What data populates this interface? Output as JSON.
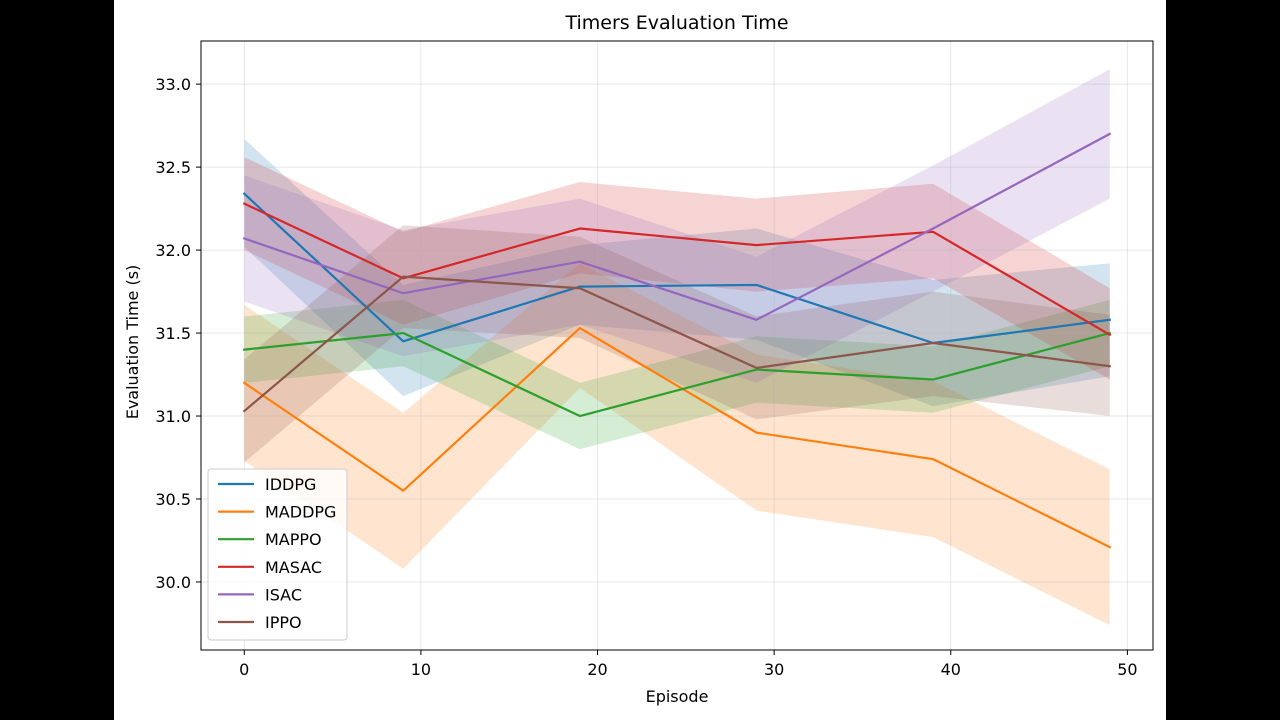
{
  "chart_data": {
    "type": "line",
    "title": "Timers Evaluation Time",
    "xlabel": "Episode",
    "ylabel": "Evaluation Time (s)",
    "xlim": [
      -2.45,
      51.45
    ],
    "ylim": [
      29.59,
      33.26
    ],
    "xticks": [
      0,
      10,
      20,
      30,
      40,
      50
    ],
    "yticks": [
      30.0,
      30.5,
      31.0,
      31.5,
      32.0,
      32.5,
      33.0
    ],
    "ytick_labels": [
      "30.0",
      "30.5",
      "31.0",
      "31.5",
      "32.0",
      "32.5",
      "33.0"
    ],
    "grid": true,
    "legend_position": "lower-left",
    "x": [
      0,
      9,
      19,
      29,
      39,
      49
    ],
    "series": [
      {
        "name": "IDDPG",
        "color": "#1f77b4",
        "values": [
          32.34,
          31.45,
          31.78,
          31.79,
          31.44,
          31.58
        ],
        "lower": [
          32.02,
          31.12,
          31.55,
          31.46,
          31.06,
          31.24
        ],
        "upper": [
          32.67,
          31.79,
          32.03,
          32.13,
          31.82,
          31.92
        ]
      },
      {
        "name": "MADDPG",
        "color": "#ff7f0e",
        "values": [
          31.2,
          30.55,
          31.53,
          30.9,
          30.74,
          30.21
        ],
        "lower": [
          30.73,
          30.08,
          31.17,
          30.43,
          30.27,
          29.74
        ],
        "upper": [
          31.67,
          31.02,
          31.92,
          31.37,
          31.21,
          30.68
        ]
      },
      {
        "name": "MAPPO",
        "color": "#2ca02c",
        "values": [
          31.4,
          31.5,
          31.0,
          31.28,
          31.22,
          31.5
        ],
        "lower": [
          31.2,
          31.3,
          30.8,
          31.08,
          31.02,
          31.3
        ],
        "upper": [
          31.6,
          31.7,
          31.2,
          31.48,
          31.42,
          31.7
        ]
      },
      {
        "name": "MASAC",
        "color": "#d62728",
        "values": [
          32.28,
          31.83,
          32.13,
          32.03,
          32.11,
          31.49
        ],
        "lower": [
          32.0,
          31.55,
          31.86,
          31.75,
          31.83,
          31.22
        ],
        "upper": [
          32.56,
          32.11,
          32.41,
          32.31,
          32.4,
          31.77
        ]
      },
      {
        "name": "ISAC",
        "color": "#9467bd",
        "values": [
          32.07,
          31.74,
          31.93,
          31.58,
          32.13,
          32.7
        ],
        "lower": [
          31.69,
          31.36,
          31.55,
          31.2,
          31.75,
          32.31
        ],
        "upper": [
          32.45,
          32.12,
          32.31,
          31.96,
          32.51,
          33.09
        ]
      },
      {
        "name": "IPPO",
        "color": "#8c564b",
        "values": [
          31.03,
          31.84,
          31.77,
          31.29,
          31.44,
          31.3
        ],
        "lower": [
          30.72,
          31.53,
          31.47,
          30.98,
          31.12,
          31.0
        ],
        "upper": [
          31.34,
          32.15,
          32.08,
          31.6,
          31.75,
          31.61
        ]
      }
    ]
  }
}
